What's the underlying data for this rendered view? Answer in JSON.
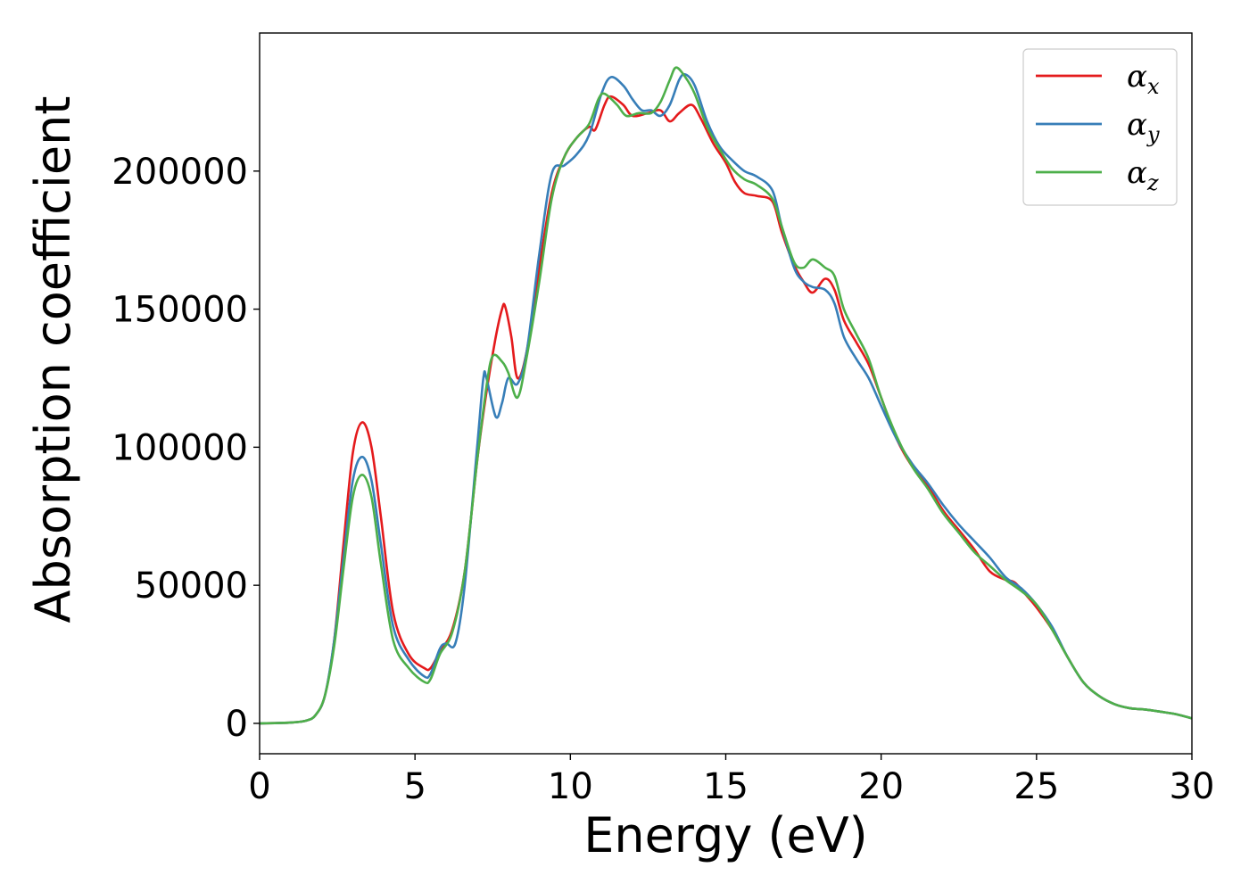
{
  "chart_data": {
    "type": "line",
    "xlabel": "Energy (eV)",
    "ylabel": "Absorption coefficient",
    "xlim": [
      0,
      30
    ],
    "ylim": [
      -11000,
      250000
    ],
    "xticks": [
      0,
      5,
      10,
      15,
      20,
      25,
      30
    ],
    "yticks": [
      0,
      50000,
      100000,
      150000,
      200000
    ],
    "grid": false,
    "legend_position": "top-right",
    "series": [
      {
        "name": "αx",
        "symbol": "α",
        "subscript": "x",
        "color": "#e41a1c",
        "points": [
          [
            0,
            0
          ],
          [
            1,
            300
          ],
          [
            1.5,
            1000
          ],
          [
            1.8,
            3000
          ],
          [
            2.1,
            10000
          ],
          [
            2.4,
            30000
          ],
          [
            2.7,
            65000
          ],
          [
            3.0,
            98000
          ],
          [
            3.3,
            109000
          ],
          [
            3.6,
            100000
          ],
          [
            3.9,
            75000
          ],
          [
            4.3,
            40000
          ],
          [
            4.8,
            25000
          ],
          [
            5.3,
            20000
          ],
          [
            5.5,
            20000
          ],
          [
            5.8,
            26000
          ],
          [
            6.2,
            34000
          ],
          [
            6.6,
            55000
          ],
          [
            7.0,
            95000
          ],
          [
            7.3,
            120000
          ],
          [
            7.6,
            140000
          ],
          [
            7.8,
            150000
          ],
          [
            7.9,
            151000
          ],
          [
            8.1,
            140000
          ],
          [
            8.3,
            125000
          ],
          [
            8.6,
            135000
          ],
          [
            9.0,
            165000
          ],
          [
            9.4,
            192000
          ],
          [
            9.8,
            205000
          ],
          [
            10.2,
            212000
          ],
          [
            10.6,
            216000
          ],
          [
            10.8,
            215000
          ],
          [
            11.1,
            224000
          ],
          [
            11.3,
            227000
          ],
          [
            11.7,
            224000
          ],
          [
            12.0,
            220000
          ],
          [
            12.5,
            221000
          ],
          [
            12.9,
            222000
          ],
          [
            13.2,
            218000
          ],
          [
            13.5,
            221000
          ],
          [
            13.9,
            224000
          ],
          [
            14.2,
            219000
          ],
          [
            14.6,
            210000
          ],
          [
            15.0,
            203000
          ],
          [
            15.3,
            196000
          ],
          [
            15.6,
            192000
          ],
          [
            16.0,
            191000
          ],
          [
            16.5,
            189000
          ],
          [
            16.8,
            178000
          ],
          [
            17.2,
            166000
          ],
          [
            17.5,
            160000
          ],
          [
            17.8,
            156000
          ],
          [
            18.2,
            161000
          ],
          [
            18.5,
            157000
          ],
          [
            18.8,
            146000
          ],
          [
            19.2,
            138000
          ],
          [
            19.6,
            130000
          ],
          [
            20.0,
            118000
          ],
          [
            20.5,
            103000
          ],
          [
            21.0,
            93000
          ],
          [
            21.5,
            86000
          ],
          [
            22.0,
            77000
          ],
          [
            22.5,
            70000
          ],
          [
            23.0,
            63000
          ],
          [
            23.5,
            55000
          ],
          [
            24.0,
            52000
          ],
          [
            24.3,
            51000
          ],
          [
            24.7,
            46000
          ],
          [
            25.0,
            42000
          ],
          [
            25.5,
            34000
          ],
          [
            26.0,
            24000
          ],
          [
            26.5,
            15000
          ],
          [
            27.0,
            10000
          ],
          [
            27.5,
            7000
          ],
          [
            28.0,
            5500
          ],
          [
            28.5,
            5000
          ],
          [
            29.0,
            4200
          ],
          [
            29.5,
            3300
          ],
          [
            30.0,
            1800
          ]
        ]
      },
      {
        "name": "αy",
        "symbol": "α",
        "subscript": "y",
        "color": "#377eb8",
        "points": [
          [
            0,
            0
          ],
          [
            1,
            300
          ],
          [
            1.5,
            1000
          ],
          [
            1.8,
            3000
          ],
          [
            2.1,
            10000
          ],
          [
            2.4,
            30000
          ],
          [
            2.7,
            60000
          ],
          [
            3.0,
            88000
          ],
          [
            3.3,
            96500
          ],
          [
            3.6,
            88000
          ],
          [
            3.9,
            65000
          ],
          [
            4.3,
            35000
          ],
          [
            4.8,
            23000
          ],
          [
            5.3,
            17000
          ],
          [
            5.5,
            18000
          ],
          [
            5.8,
            27000
          ],
          [
            6.0,
            29000
          ],
          [
            6.3,
            29000
          ],
          [
            6.6,
            50000
          ],
          [
            7.0,
            100000
          ],
          [
            7.2,
            125000
          ],
          [
            7.3,
            125000
          ],
          [
            7.6,
            111000
          ],
          [
            7.8,
            116000
          ],
          [
            8.0,
            125000
          ],
          [
            8.3,
            123000
          ],
          [
            8.6,
            135000
          ],
          [
            9.0,
            170000
          ],
          [
            9.4,
            199000
          ],
          [
            9.8,
            202000
          ],
          [
            10.2,
            206000
          ],
          [
            10.6,
            213000
          ],
          [
            11.0,
            228000
          ],
          [
            11.3,
            234000
          ],
          [
            11.7,
            231000
          ],
          [
            12.0,
            226000
          ],
          [
            12.3,
            222000
          ],
          [
            12.6,
            222000
          ],
          [
            12.9,
            220000
          ],
          [
            13.2,
            224000
          ],
          [
            13.5,
            233000
          ],
          [
            13.7,
            235000
          ],
          [
            14.0,
            231000
          ],
          [
            14.4,
            218000
          ],
          [
            14.8,
            209000
          ],
          [
            15.2,
            204000
          ],
          [
            15.6,
            200000
          ],
          [
            16.0,
            198000
          ],
          [
            16.5,
            193000
          ],
          [
            16.8,
            180000
          ],
          [
            17.2,
            165000
          ],
          [
            17.5,
            160000
          ],
          [
            17.8,
            158000
          ],
          [
            18.2,
            157000
          ],
          [
            18.5,
            152000
          ],
          [
            18.8,
            140000
          ],
          [
            19.2,
            132000
          ],
          [
            19.6,
            125000
          ],
          [
            20.0,
            115000
          ],
          [
            20.5,
            103000
          ],
          [
            21.0,
            94000
          ],
          [
            21.5,
            87000
          ],
          [
            22.0,
            79000
          ],
          [
            22.5,
            72000
          ],
          [
            23.0,
            66000
          ],
          [
            23.5,
            60000
          ],
          [
            24.0,
            53000
          ],
          [
            24.5,
            49000
          ],
          [
            25.0,
            43000
          ],
          [
            25.5,
            35000
          ],
          [
            26.0,
            24000
          ],
          [
            26.5,
            15000
          ],
          [
            27.0,
            10000
          ],
          [
            27.5,
            7000
          ],
          [
            28.0,
            5500
          ],
          [
            28.5,
            5000
          ],
          [
            29.0,
            4200
          ],
          [
            29.5,
            3300
          ],
          [
            30.0,
            1800
          ]
        ]
      },
      {
        "name": "αz",
        "symbol": "α",
        "subscript": "z",
        "color": "#4daf4a",
        "points": [
          [
            0,
            0
          ],
          [
            1,
            300
          ],
          [
            1.5,
            1000
          ],
          [
            1.8,
            3000
          ],
          [
            2.1,
            10000
          ],
          [
            2.4,
            28000
          ],
          [
            2.7,
            56000
          ],
          [
            3.0,
            82000
          ],
          [
            3.3,
            90000
          ],
          [
            3.6,
            82000
          ],
          [
            3.9,
            58000
          ],
          [
            4.3,
            30000
          ],
          [
            4.8,
            20000
          ],
          [
            5.3,
            15000
          ],
          [
            5.5,
            16000
          ],
          [
            5.8,
            25000
          ],
          [
            6.2,
            33000
          ],
          [
            6.6,
            55000
          ],
          [
            7.0,
            95000
          ],
          [
            7.3,
            122000
          ],
          [
            7.5,
            133000
          ],
          [
            7.8,
            131000
          ],
          [
            8.0,
            127000
          ],
          [
            8.3,
            118000
          ],
          [
            8.6,
            133000
          ],
          [
            9.0,
            160000
          ],
          [
            9.4,
            190000
          ],
          [
            9.8,
            205000
          ],
          [
            10.2,
            212000
          ],
          [
            10.6,
            217000
          ],
          [
            10.9,
            226000
          ],
          [
            11.1,
            228000
          ],
          [
            11.5,
            224000
          ],
          [
            11.8,
            220000
          ],
          [
            12.2,
            221000
          ],
          [
            12.6,
            221000
          ],
          [
            12.9,
            225000
          ],
          [
            13.2,
            233000
          ],
          [
            13.4,
            237500
          ],
          [
            13.7,
            234000
          ],
          [
            14.0,
            228000
          ],
          [
            14.4,
            216000
          ],
          [
            14.8,
            208000
          ],
          [
            15.2,
            201000
          ],
          [
            15.6,
            197000
          ],
          [
            16.0,
            195000
          ],
          [
            16.5,
            190000
          ],
          [
            16.8,
            180000
          ],
          [
            17.2,
            167000
          ],
          [
            17.5,
            165000
          ],
          [
            17.8,
            168000
          ],
          [
            18.2,
            165000
          ],
          [
            18.5,
            162000
          ],
          [
            18.8,
            150000
          ],
          [
            19.2,
            141000
          ],
          [
            19.6,
            132000
          ],
          [
            20.0,
            118000
          ],
          [
            20.5,
            104000
          ],
          [
            21.0,
            93000
          ],
          [
            21.5,
            85000
          ],
          [
            22.0,
            76000
          ],
          [
            22.5,
            69000
          ],
          [
            23.0,
            62000
          ],
          [
            23.5,
            57000
          ],
          [
            24.0,
            52000
          ],
          [
            24.5,
            48000
          ],
          [
            25.0,
            43000
          ],
          [
            25.5,
            34000
          ],
          [
            26.0,
            24000
          ],
          [
            26.5,
            15000
          ],
          [
            27.0,
            10000
          ],
          [
            27.5,
            7000
          ],
          [
            28.0,
            5500
          ],
          [
            28.5,
            5000
          ],
          [
            29.0,
            4200
          ],
          [
            29.5,
            3300
          ],
          [
            30.0,
            1800
          ]
        ]
      }
    ]
  }
}
